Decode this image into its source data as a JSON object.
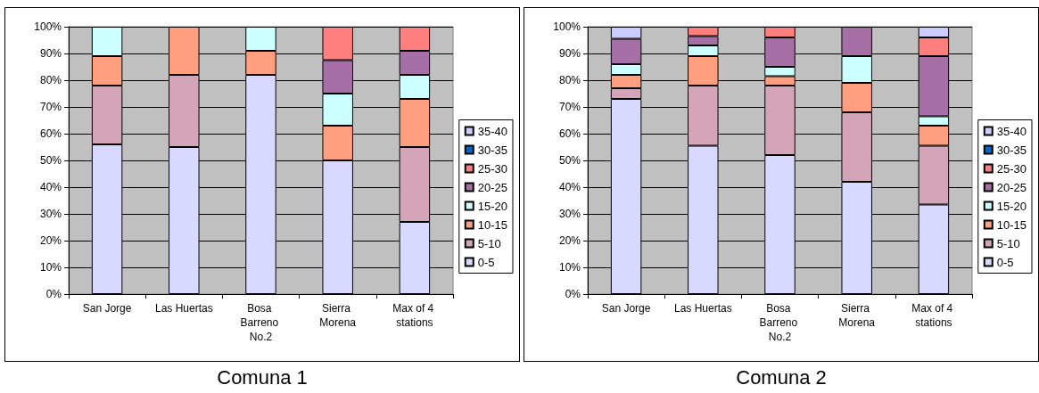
{
  "chart_data": [
    {
      "type": "bar",
      "stacked": true,
      "title": "Comuna 1",
      "categories": [
        "San Jorge",
        "Las Huertas",
        "Bosa Barreno No.2",
        "Sierra Morena",
        "Max of 4 stations"
      ],
      "series": [
        {
          "name": "0-5",
          "color": "#d9d9ff",
          "values": [
            56,
            55,
            82,
            50,
            27
          ]
        },
        {
          "name": "5-10",
          "color": "#d4a5b9",
          "values": [
            22,
            27,
            null,
            null,
            28
          ]
        },
        {
          "name": "10-15",
          "color": "#ff9f7f",
          "values": [
            11,
            18,
            9,
            13,
            18
          ]
        },
        {
          "name": "15-20",
          "color": "#ccffff",
          "values": [
            11,
            null,
            9,
            12,
            9
          ]
        },
        {
          "name": "20-25",
          "color": "#a670a6",
          "values": [
            null,
            null,
            null,
            12.5,
            9
          ]
        },
        {
          "name": "25-30",
          "color": "#ff7f7f",
          "values": [
            null,
            null,
            null,
            12.5,
            9
          ]
        },
        {
          "name": "30-35",
          "color": "#0066cc",
          "values": [
            null,
            null,
            null,
            null,
            null
          ]
        },
        {
          "name": "35-40",
          "color": "#ccccff",
          "values": [
            null,
            null,
            null,
            null,
            null
          ]
        }
      ],
      "ylim": [
        0,
        100
      ],
      "yticks": [
        {
          "value": 0,
          "label": "0%"
        },
        {
          "value": 10,
          "label": "10%"
        },
        {
          "value": 20,
          "label": "20%"
        },
        {
          "value": 30,
          "label": "30%"
        },
        {
          "value": 40,
          "label": "40%"
        },
        {
          "value": 50,
          "label": "50%"
        },
        {
          "value": 60,
          "label": "60%"
        },
        {
          "value": 70,
          "label": "70%"
        },
        {
          "value": 80,
          "label": "80%"
        },
        {
          "value": 90,
          "label": "90%"
        },
        {
          "value": 100,
          "label": "100%"
        }
      ],
      "grid": "y",
      "legend": "right"
    },
    {
      "type": "bar",
      "stacked": true,
      "title": "Comuna 2",
      "categories": [
        "San Jorge",
        "Las Huertas",
        "Bosa Barreno No.2",
        "Sierra Morena",
        "Max of 4 stations"
      ],
      "series": [
        {
          "name": "0-5",
          "color": "#d9d9ff",
          "values": [
            73,
            55.5,
            52,
            42,
            33.5
          ]
        },
        {
          "name": "5-10",
          "color": "#d4a5b9",
          "values": [
            4,
            22.5,
            26,
            26,
            22
          ]
        },
        {
          "name": "10-15",
          "color": "#ff9f7f",
          "values": [
            5,
            11,
            3.5,
            11,
            7.5
          ]
        },
        {
          "name": "15-20",
          "color": "#ccffff",
          "values": [
            4,
            4,
            3.5,
            10,
            3.5
          ]
        },
        {
          "name": "20-25",
          "color": "#a670a6",
          "values": [
            9.5,
            3.5,
            11,
            11,
            22.5
          ]
        },
        {
          "name": "25-30",
          "color": "#ff7f7f",
          "values": [
            null,
            3.5,
            4,
            null,
            7
          ]
        },
        {
          "name": "30-35",
          "color": "#0066cc",
          "values": [
            null,
            null,
            null,
            null,
            null
          ]
        },
        {
          "name": "35-40",
          "color": "#ccccff",
          "values": [
            4.5,
            null,
            null,
            null,
            4
          ]
        }
      ],
      "ylim": [
        0,
        100
      ],
      "yticks": [
        {
          "value": 0,
          "label": "0%"
        },
        {
          "value": 10,
          "label": "10%"
        },
        {
          "value": 20,
          "label": "20%"
        },
        {
          "value": 30,
          "label": "30%"
        },
        {
          "value": 40,
          "label": "40%"
        },
        {
          "value": 50,
          "label": "50%"
        },
        {
          "value": 60,
          "label": "60%"
        },
        {
          "value": 70,
          "label": "70%"
        },
        {
          "value": 80,
          "label": "80%"
        },
        {
          "value": 90,
          "label": "90%"
        },
        {
          "value": 100,
          "label": "100%"
        }
      ],
      "grid": "y",
      "legend": "right"
    }
  ]
}
